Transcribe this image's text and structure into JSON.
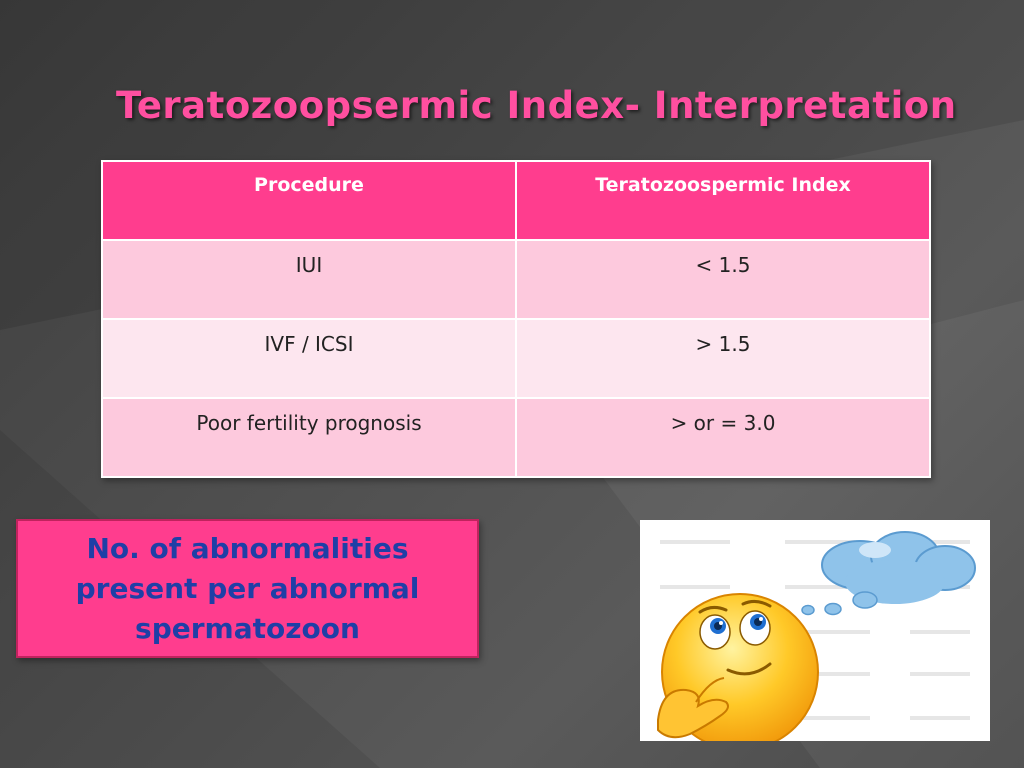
{
  "slide": {
    "title": "Teratozoopsermic Index- Interpretation"
  },
  "table": {
    "headers": [
      "Procedure",
      "Teratozoospermic Index"
    ],
    "rows": [
      [
        "IUI",
        "< 1.5"
      ],
      [
        "IVF / ICSI",
        "> 1.5"
      ],
      [
        "Poor fertility prognosis",
        "> or = 3.0"
      ]
    ]
  },
  "callout": {
    "text": "No. of abnormalities present per abnormal spermatozoon"
  },
  "picture": {
    "icon": "thinking-emoji-icon",
    "description_icon": "thought-cloud-icon"
  },
  "colors": {
    "accent_pink": "#ff3d8e",
    "title_pink": "#ff4fa0",
    "callout_text_blue": "#1f3fa6",
    "row_pink_dark": "#fdc9dd",
    "row_pink_light": "#fde6ef"
  }
}
